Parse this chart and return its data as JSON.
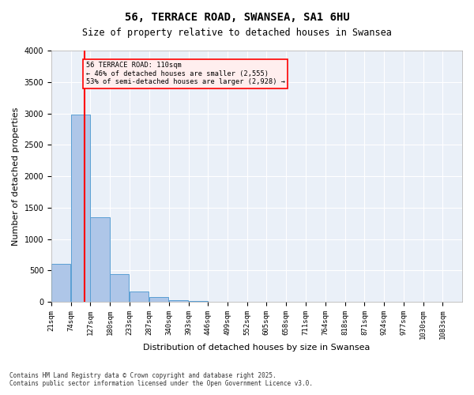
{
  "title1": "56, TERRACE ROAD, SWANSEA, SA1 6HU",
  "title2": "Size of property relative to detached houses in Swansea",
  "xlabel": "Distribution of detached houses by size in Swansea",
  "ylabel": "Number of detached properties",
  "bin_labels": [
    "21sqm",
    "74sqm",
    "127sqm",
    "180sqm",
    "233sqm",
    "287sqm",
    "340sqm",
    "393sqm",
    "446sqm",
    "499sqm",
    "552sqm",
    "605sqm",
    "658sqm",
    "711sqm",
    "764sqm",
    "818sqm",
    "871sqm",
    "924sqm",
    "977sqm",
    "1030sqm",
    "1083sqm"
  ],
  "bar_values": [
    600,
    2980,
    1350,
    440,
    165,
    82,
    28,
    14,
    6,
    5,
    3,
    2,
    1,
    1,
    1,
    1,
    1,
    1,
    1,
    1,
    0
  ],
  "bar_color": "#aec6e8",
  "bar_edge_color": "#5a9fd4",
  "vline_x": 110,
  "vline_color": "red",
  "annotation_text": "56 TERRACE ROAD: 110sqm\n← 46% of detached houses are smaller (2,555)\n53% of semi-detached houses are larger (2,928) →",
  "annotation_box_color": "#ffeeee",
  "annotation_border_color": "red",
  "ylim": [
    0,
    4000
  ],
  "yticks": [
    0,
    500,
    1000,
    1500,
    2000,
    2500,
    3000,
    3500,
    4000
  ],
  "bg_color": "#eaf0f8",
  "footnote1": "Contains HM Land Registry data © Crown copyright and database right 2025.",
  "footnote2": "Contains public sector information licensed under the Open Government Licence v3.0.",
  "bin_edges": [
    21,
    74,
    127,
    180,
    233,
    287,
    340,
    393,
    446,
    499,
    552,
    605,
    658,
    711,
    764,
    818,
    871,
    924,
    977,
    1030,
    1083
  ]
}
